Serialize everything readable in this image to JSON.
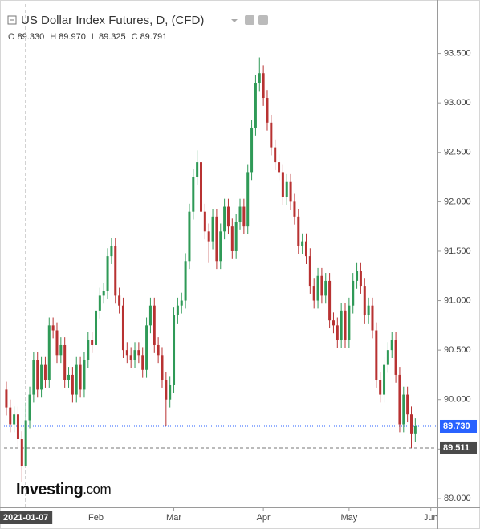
{
  "chart_data": {
    "type": "candlestick",
    "title": "US Dollar Index Futures, D, (CFD)",
    "legend": [
      {
        "key": "O",
        "value": 89.33,
        "label": "89.330"
      },
      {
        "key": "H",
        "value": 89.97,
        "label": "89.970"
      },
      {
        "key": "L",
        "value": 89.325,
        "label": "89.325"
      },
      {
        "key": "C",
        "value": 89.791,
        "label": "89.791"
      }
    ],
    "up_color": "#2f9a57",
    "down_color": "#b83232",
    "open": [
      90.1,
      89.92,
      89.75,
      89.85,
      89.6,
      89.33,
      89.791,
      90.05,
      90.4,
      90.1,
      90.35,
      90.2,
      90.75,
      90.7,
      90.45,
      90.55,
      90.2,
      90.25,
      90.05,
      90.35,
      90.1,
      90.4,
      90.6,
      90.55,
      90.9,
      91.05,
      91.1,
      91.45,
      91.55,
      91.05,
      90.95,
      90.5,
      90.45,
      90.4,
      90.5,
      90.45,
      90.3,
      90.75,
      90.95,
      90.55,
      90.45,
      90.2,
      90.0,
      90.15,
      90.85,
      90.95,
      91.0,
      91.4,
      91.9,
      92.25,
      92.4,
      91.9,
      91.7,
      91.6,
      91.85,
      91.4,
      91.7,
      91.95,
      91.75,
      91.5,
      91.8,
      91.95,
      91.75,
      92.3,
      92.75,
      93.2,
      93.3,
      93.05,
      92.8,
      92.55,
      92.4,
      92.3,
      92.05,
      92.2,
      92.0,
      91.85,
      91.55,
      91.6,
      91.45,
      91.15,
      91.0,
      91.25,
      91.05,
      91.2,
      90.8,
      90.75,
      90.6,
      90.9,
      90.6,
      90.95,
      91.2,
      91.3,
      91.15,
      90.85,
      90.95,
      90.7,
      90.2,
      90.05,
      90.35,
      90.5,
      90.6,
      90.25,
      89.75,
      90.05,
      89.85,
      89.65
    ],
    "high": [
      90.18,
      90.0,
      89.93,
      89.93,
      89.68,
      89.97,
      90.13,
      90.48,
      90.48,
      90.43,
      90.43,
      90.83,
      90.83,
      90.78,
      90.63,
      90.63,
      90.33,
      90.33,
      90.43,
      90.43,
      90.48,
      90.68,
      90.68,
      90.98,
      91.13,
      91.18,
      91.53,
      91.63,
      91.63,
      91.13,
      91.03,
      90.58,
      90.53,
      90.58,
      90.58,
      90.53,
      90.83,
      91.03,
      91.03,
      90.63,
      90.53,
      90.28,
      90.23,
      90.93,
      91.03,
      91.08,
      91.48,
      91.98,
      92.33,
      92.52,
      92.48,
      91.98,
      91.78,
      91.93,
      91.93,
      91.78,
      92.03,
      92.03,
      91.83,
      91.88,
      92.03,
      92.03,
      92.38,
      92.83,
      93.28,
      93.46,
      93.38,
      93.13,
      92.88,
      92.63,
      92.48,
      92.38,
      92.28,
      92.28,
      92.08,
      91.93,
      91.68,
      91.68,
      91.53,
      91.23,
      91.33,
      91.33,
      91.28,
      91.28,
      90.88,
      90.83,
      90.98,
      90.98,
      91.03,
      91.28,
      91.38,
      91.38,
      91.23,
      91.03,
      91.03,
      90.78,
      90.28,
      90.43,
      90.58,
      90.68,
      90.68,
      90.33,
      90.13,
      90.13,
      89.93,
      89.81
    ],
    "low": [
      89.84,
      89.67,
      89.67,
      89.52,
      89.17,
      89.325,
      89.71,
      89.97,
      90.02,
      90.02,
      90.12,
      90.12,
      90.62,
      90.37,
      90.37,
      90.12,
      90.12,
      89.97,
      89.97,
      90.02,
      90.02,
      90.32,
      90.47,
      90.47,
      90.82,
      90.97,
      91.02,
      91.37,
      90.97,
      90.87,
      90.42,
      90.37,
      90.32,
      90.32,
      90.37,
      90.22,
      90.22,
      90.67,
      90.47,
      90.37,
      90.12,
      89.73,
      89.92,
      90.07,
      90.77,
      90.87,
      90.92,
      91.32,
      91.82,
      92.17,
      91.82,
      91.62,
      91.38,
      91.52,
      91.32,
      91.32,
      91.62,
      91.67,
      91.42,
      91.42,
      91.72,
      91.67,
      91.67,
      92.22,
      92.67,
      93.12,
      92.97,
      92.72,
      92.47,
      92.32,
      92.22,
      91.97,
      91.97,
      91.92,
      91.77,
      91.47,
      91.47,
      91.37,
      91.07,
      90.92,
      90.92,
      90.97,
      90.97,
      90.72,
      90.67,
      90.52,
      90.52,
      90.52,
      90.52,
      90.87,
      91.12,
      91.07,
      90.77,
      90.77,
      90.62,
      90.12,
      89.97,
      89.97,
      90.27,
      90.42,
      90.17,
      89.67,
      89.67,
      89.77,
      89.51,
      89.57
    ],
    "close": [
      89.92,
      89.75,
      89.85,
      89.6,
      89.33,
      89.791,
      90.05,
      90.4,
      90.1,
      90.35,
      90.2,
      90.75,
      90.7,
      90.45,
      90.55,
      90.2,
      90.25,
      90.05,
      90.35,
      90.1,
      90.4,
      90.6,
      90.55,
      90.9,
      91.05,
      91.1,
      91.45,
      91.55,
      91.05,
      90.95,
      90.5,
      90.45,
      90.4,
      90.5,
      90.45,
      90.3,
      90.75,
      90.95,
      90.55,
      90.45,
      90.2,
      90.0,
      90.15,
      90.85,
      90.95,
      91.0,
      91.4,
      91.9,
      92.25,
      92.4,
      91.9,
      91.7,
      91.6,
      91.85,
      91.4,
      91.7,
      91.95,
      91.75,
      91.5,
      91.8,
      91.95,
      91.75,
      92.3,
      92.75,
      93.2,
      93.3,
      93.05,
      92.8,
      92.55,
      92.4,
      92.3,
      92.05,
      92.2,
      92.0,
      91.85,
      91.55,
      91.6,
      91.45,
      91.15,
      91.0,
      91.25,
      91.05,
      91.2,
      90.8,
      90.75,
      90.6,
      90.9,
      90.6,
      90.95,
      91.2,
      91.3,
      91.15,
      90.85,
      90.95,
      90.7,
      90.2,
      90.05,
      90.35,
      90.5,
      90.6,
      90.25,
      89.75,
      90.05,
      89.85,
      89.65,
      89.73
    ],
    "xlim": [
      -0.6,
      110.7
    ],
    "xticks": [
      {
        "value": 23,
        "label": "Feb"
      },
      {
        "value": 43,
        "label": "Mar"
      },
      {
        "value": 66,
        "label": "Apr"
      },
      {
        "value": 88,
        "label": "May"
      },
      {
        "value": 109,
        "label": "Jun"
      }
    ],
    "ylim": [
      88.91,
      94.0
    ],
    "yticks": [
      {
        "value": 89.0,
        "label": "89.000"
      },
      {
        "value": 89.5,
        "label": "89.500"
      },
      {
        "value": 90.0,
        "label": "90.000"
      },
      {
        "value": 90.5,
        "label": "90.500"
      },
      {
        "value": 91.0,
        "label": "91.000"
      },
      {
        "value": 91.5,
        "label": "91.500"
      },
      {
        "value": 92.0,
        "label": "92.000"
      },
      {
        "value": 92.5,
        "label": "92.500"
      },
      {
        "value": 93.0,
        "label": "93.000"
      },
      {
        "value": 93.5,
        "label": "93.500"
      }
    ],
    "last_price": {
      "value": 89.73,
      "label": "89.730",
      "color": "#2962ff"
    },
    "crosshair": {
      "x": 5,
      "x_label": "2021-01-07",
      "y": 89.511
    },
    "logo": {
      "main": "Investing",
      "suffix": ".com"
    }
  }
}
